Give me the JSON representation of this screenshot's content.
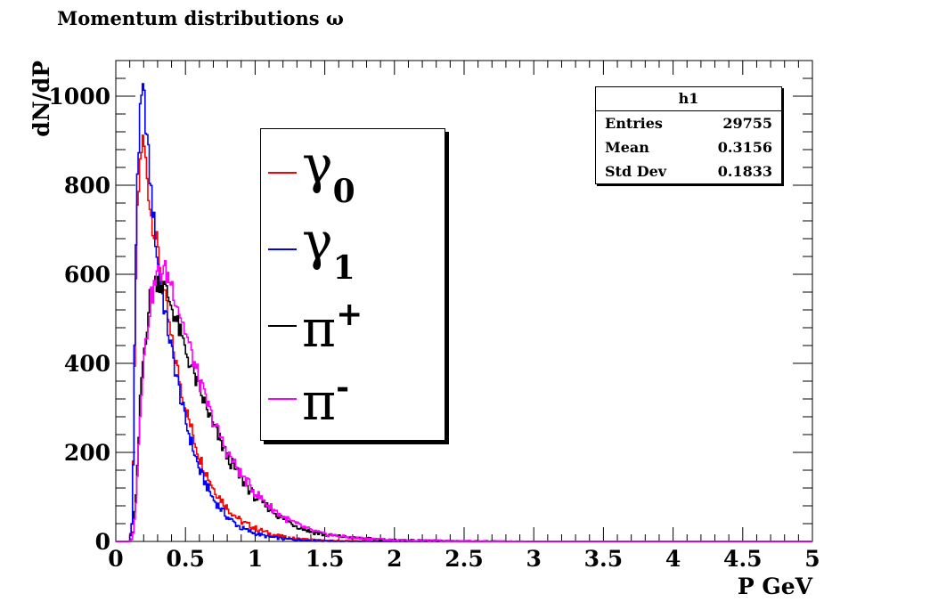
{
  "chart_data": {
    "type": "line",
    "title": "Momentum distributions  ω",
    "xlabel": "P GeV",
    "ylabel": "dN/dP",
    "xlim": [
      0,
      5
    ],
    "ylim": [
      0,
      1080
    ],
    "x_ticks": [
      "0",
      "0.5",
      "1",
      "1.5",
      "2",
      "2.5",
      "3",
      "3.5",
      "4",
      "4.5",
      "5"
    ],
    "y_ticks": [
      "0",
      "200",
      "400",
      "600",
      "800",
      "1000"
    ],
    "legend_position": "center-left",
    "x": [
      0.0,
      0.1,
      0.12,
      0.15,
      0.18,
      0.2,
      0.25,
      0.3,
      0.35,
      0.4,
      0.5,
      0.6,
      0.7,
      0.8,
      0.9,
      1.0,
      1.1,
      1.2,
      1.3,
      1.4,
      1.5,
      1.7,
      2.0,
      2.5,
      3.0,
      5.0
    ],
    "series": [
      {
        "name": "γ0",
        "color": "#ff0000",
        "values": [
          0,
          0,
          60,
          700,
          880,
          900,
          740,
          660,
          550,
          450,
          300,
          190,
          120,
          75,
          45,
          30,
          18,
          10,
          6,
          4,
          2,
          1,
          0,
          0,
          0,
          0
        ]
      },
      {
        "name": "γ1",
        "color": "#0000ff",
        "values": [
          0,
          0,
          50,
          800,
          980,
          1010,
          800,
          630,
          520,
          430,
          270,
          160,
          95,
          55,
          30,
          18,
          10,
          6,
          4,
          2,
          1,
          0,
          0,
          0,
          0,
          0
        ]
      },
      {
        "name": "π+",
        "color": "#000000",
        "values": [
          0,
          0,
          5,
          120,
          350,
          420,
          560,
          590,
          570,
          530,
          430,
          340,
          260,
          190,
          140,
          100,
          75,
          50,
          35,
          22,
          15,
          8,
          3,
          1,
          0,
          0
        ]
      },
      {
        "name": "π-",
        "color": "#ff00ff",
        "values": [
          0,
          0,
          5,
          110,
          330,
          400,
          540,
          600,
          610,
          580,
          470,
          360,
          270,
          200,
          150,
          110,
          80,
          55,
          38,
          25,
          16,
          8,
          3,
          1,
          0,
          0
        ]
      }
    ]
  },
  "legend": {
    "gamma0": {
      "symbol": "γ",
      "sub": "0"
    },
    "gamma1": {
      "symbol": "γ",
      "sub": "1"
    },
    "piplus": {
      "symbol": "π",
      "sup": "+"
    },
    "piminus": {
      "symbol": "π",
      "sup": "-"
    }
  },
  "stats": {
    "name": "h1",
    "entries_label": "Entries",
    "entries_value": "29755",
    "mean_label": "Mean",
    "mean_value": "0.3156",
    "std_label": "Std Dev",
    "std_value": "0.1833"
  }
}
